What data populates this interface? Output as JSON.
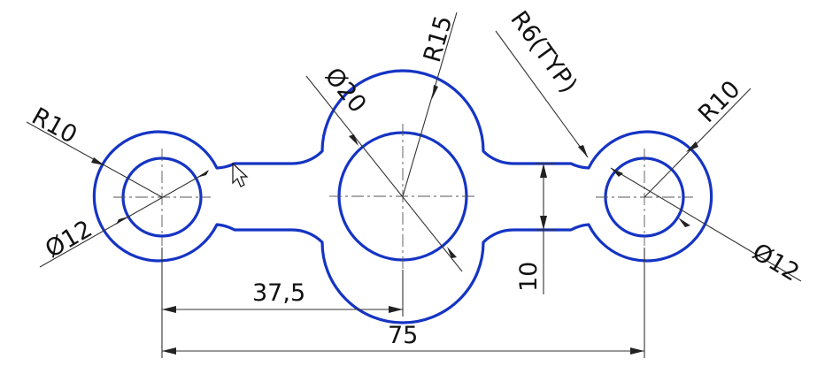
{
  "drawing": {
    "colors": {
      "outline": "#1534c4",
      "dimension_lines": "#333333",
      "background": "#ffffff"
    },
    "dimensions": {
      "left_outer_radius": "R10",
      "left_hole_diameter": "Ø12",
      "center_hole_diameter": "Ø20",
      "center_outer_radius": "R15",
      "fillet_radius": "R6(TYP)",
      "right_outer_radius": "R10",
      "right_hole_diameter": "Ø12",
      "slot_width": "10",
      "center_offset": "37,5",
      "overall_length": "75"
    }
  }
}
